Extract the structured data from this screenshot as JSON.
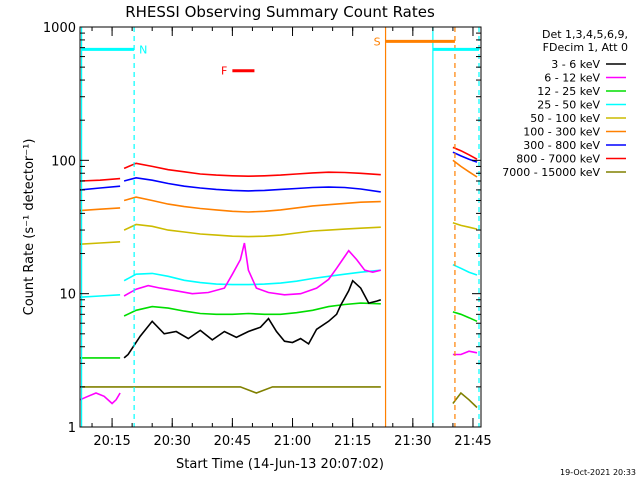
{
  "chart_data": {
    "type": "line",
    "title": "RHESSI Observing Summary Count Rates",
    "xlabel": "Start Time (14-Jun-13 20:07:02)",
    "ylabel": "Count Rate (s⁻¹ detector⁻¹)",
    "y_scale": "log",
    "ylim": [
      1,
      1000
    ],
    "y_ticks": [
      {
        "value": 1,
        "label": "1"
      },
      {
        "value": 10,
        "label": "10"
      },
      {
        "value": 100,
        "label": "100"
      },
      {
        "value": 1000,
        "label": "1000"
      }
    ],
    "x_unit": "minutes after 20:07:02",
    "xlim": [
      0,
      100
    ],
    "x_ticks": [
      {
        "value": 8,
        "label": "20:15"
      },
      {
        "value": 23,
        "label": "20:30"
      },
      {
        "value": 38,
        "label": "20:45"
      },
      {
        "value": 53,
        "label": "21:00"
      },
      {
        "value": 68,
        "label": "21:15"
      },
      {
        "value": 83,
        "label": "21:30"
      },
      {
        "value": 98,
        "label": "21:45"
      }
    ],
    "legend": {
      "placement": "right",
      "header": [
        "Det 1,3,4,5,6,9,",
        "FDecim 1, Att 0"
      ]
    },
    "series": [
      {
        "name": "3 - 6 keV",
        "color": "#000000",
        "segments": [
          [
            [
              11,
              3.3
            ],
            [
              12,
              3.5
            ],
            [
              15,
              4.8
            ],
            [
              18,
              6.2
            ],
            [
              21,
              5.0
            ],
            [
              24,
              5.2
            ],
            [
              27,
              4.6
            ],
            [
              30,
              5.3
            ],
            [
              33,
              4.5
            ],
            [
              36,
              5.2
            ],
            [
              39,
              4.7
            ],
            [
              42,
              5.2
            ],
            [
              45,
              5.6
            ],
            [
              47,
              6.5
            ],
            [
              49,
              5.2
            ],
            [
              51,
              4.4
            ],
            [
              53,
              4.3
            ],
            [
              55,
              4.6
            ],
            [
              57,
              4.2
            ],
            [
              59,
              5.4
            ],
            [
              62,
              6.2
            ],
            [
              64,
              7.0
            ],
            [
              65,
              8.2
            ],
            [
              67,
              10.5
            ],
            [
              68,
              12.5
            ],
            [
              70,
              11.0
            ],
            [
              72,
              8.5
            ],
            [
              74,
              8.8
            ],
            [
              75,
              9.0
            ]
          ]
        ]
      },
      {
        "name": "6 - 12 keV",
        "color": "#ff00ff",
        "segments": [
          [
            [
              0,
              1.6
            ],
            [
              2,
              1.7
            ],
            [
              4,
              1.8
            ],
            [
              6,
              1.7
            ],
            [
              8,
              1.5
            ],
            [
              9,
              1.6
            ],
            [
              10,
              1.8
            ]
          ],
          [
            [
              11,
              9.6
            ],
            [
              12,
              10.0
            ],
            [
              14,
              10.8
            ],
            [
              17,
              11.5
            ],
            [
              20,
              11.0
            ],
            [
              24,
              10.5
            ],
            [
              28,
              10.0
            ],
            [
              32,
              10.2
            ],
            [
              36,
              11.0
            ],
            [
              38,
              14.0
            ],
            [
              40,
              18.0
            ],
            [
              41,
              24.0
            ],
            [
              42,
              15.0
            ],
            [
              44,
              11.0
            ],
            [
              47,
              10.2
            ],
            [
              51,
              9.8
            ],
            [
              55,
              10.0
            ],
            [
              59,
              11.0
            ],
            [
              62,
              12.8
            ],
            [
              64,
              15.5
            ],
            [
              66,
              19.0
            ],
            [
              67,
              21.0
            ],
            [
              69,
              18.0
            ],
            [
              71,
              15.0
            ],
            [
              73,
              14.5
            ],
            [
              75,
              15.0
            ]
          ],
          [
            [
              93,
              3.5
            ],
            [
              95,
              3.5
            ],
            [
              97,
              3.7
            ],
            [
              99,
              3.6
            ]
          ]
        ]
      },
      {
        "name": "12 - 25 keV",
        "color": "#00dd00",
        "segments": [
          [
            [
              0,
              3.3
            ],
            [
              5,
              3.3
            ],
            [
              10,
              3.3
            ]
          ],
          [
            [
              11,
              6.8
            ],
            [
              14,
              7.5
            ],
            [
              18,
              8.0
            ],
            [
              22,
              7.8
            ],
            [
              26,
              7.4
            ],
            [
              30,
              7.1
            ],
            [
              34,
              7.0
            ],
            [
              38,
              7.0
            ],
            [
              42,
              7.1
            ],
            [
              46,
              7.0
            ],
            [
              50,
              7.0
            ],
            [
              54,
              7.2
            ],
            [
              58,
              7.5
            ],
            [
              62,
              8.0
            ],
            [
              66,
              8.3
            ],
            [
              70,
              8.5
            ],
            [
              75,
              8.4
            ]
          ],
          [
            [
              93,
              7.3
            ],
            [
              95,
              7.0
            ],
            [
              97,
              6.6
            ],
            [
              99,
              6.2
            ]
          ]
        ]
      },
      {
        "name": "25 - 50 keV",
        "color": "#00ffff",
        "segments": [
          [
            [
              0,
              9.4
            ],
            [
              5,
              9.6
            ],
            [
              10,
              9.8
            ]
          ],
          [
            [
              11,
              12.5
            ],
            [
              14,
              14.0
            ],
            [
              18,
              14.2
            ],
            [
              22,
              13.5
            ],
            [
              26,
              12.6
            ],
            [
              30,
              12.1
            ],
            [
              34,
              11.8
            ],
            [
              38,
              11.7
            ],
            [
              42,
              11.7
            ],
            [
              46,
              11.8
            ],
            [
              50,
              12.0
            ],
            [
              54,
              12.4
            ],
            [
              58,
              13.0
            ],
            [
              62,
              13.5
            ],
            [
              66,
              14.0
            ],
            [
              70,
              14.5
            ],
            [
              75,
              15.0
            ]
          ],
          [
            [
              93,
              16.5
            ],
            [
              95,
              15.5
            ],
            [
              97,
              14.5
            ],
            [
              99,
              13.8
            ]
          ]
        ]
      },
      {
        "name": "50 - 100 keV",
        "color": "#ccbb00",
        "segments": [
          [
            [
              0,
              23.5
            ],
            [
              5,
              24.0
            ],
            [
              10,
              24.5
            ]
          ],
          [
            [
              11,
              30.0
            ],
            [
              14,
              33.0
            ],
            [
              18,
              32.0
            ],
            [
              22,
              30.0
            ],
            [
              26,
              29.0
            ],
            [
              30,
              28.0
            ],
            [
              34,
              27.5
            ],
            [
              38,
              27.0
            ],
            [
              42,
              26.8
            ],
            [
              46,
              27.0
            ],
            [
              50,
              27.5
            ],
            [
              54,
              28.5
            ],
            [
              58,
              29.5
            ],
            [
              62,
              30.0
            ],
            [
              66,
              30.5
            ],
            [
              70,
              31.0
            ],
            [
              75,
              31.5
            ]
          ],
          [
            [
              93,
              34.0
            ],
            [
              95,
              32.5
            ],
            [
              97,
              31.5
            ],
            [
              99,
              30.5
            ]
          ]
        ]
      },
      {
        "name": "100 - 300 keV",
        "color": "#ff8000",
        "segments": [
          [
            [
              0,
              42.0
            ],
            [
              5,
              43.0
            ],
            [
              10,
              44.0
            ]
          ],
          [
            [
              11,
              50.0
            ],
            [
              14,
              53.0
            ],
            [
              18,
              50.0
            ],
            [
              22,
              47.0
            ],
            [
              26,
              45.0
            ],
            [
              30,
              43.5
            ],
            [
              34,
              42.5
            ],
            [
              38,
              41.5
            ],
            [
              42,
              41.0
            ],
            [
              46,
              41.5
            ],
            [
              50,
              42.5
            ],
            [
              54,
              44.0
            ],
            [
              58,
              45.5
            ],
            [
              62,
              46.5
            ],
            [
              66,
              47.5
            ],
            [
              70,
              48.5
            ],
            [
              75,
              49.0
            ]
          ],
          [
            [
              93,
              100.0
            ],
            [
              95,
              90.0
            ],
            [
              97,
              82.0
            ],
            [
              99,
              75.0
            ]
          ]
        ]
      },
      {
        "name": "300 - 800 keV",
        "color": "#0000ff",
        "segments": [
          [
            [
              0,
              60.0
            ],
            [
              5,
              62.0
            ],
            [
              10,
              64.0
            ]
          ],
          [
            [
              11,
              70.0
            ],
            [
              14,
              74.0
            ],
            [
              18,
              71.0
            ],
            [
              22,
              67.0
            ],
            [
              26,
              64.0
            ],
            [
              30,
              62.0
            ],
            [
              34,
              60.5
            ],
            [
              38,
              59.5
            ],
            [
              42,
              59.0
            ],
            [
              46,
              59.5
            ],
            [
              50,
              60.5
            ],
            [
              54,
              61.5
            ],
            [
              58,
              62.5
            ],
            [
              62,
              63.0
            ],
            [
              66,
              62.5
            ],
            [
              70,
              61.0
            ],
            [
              75,
              58.0
            ]
          ],
          [
            [
              93,
              115.0
            ],
            [
              95,
              108.0
            ],
            [
              97,
              102.0
            ],
            [
              99,
              97.0
            ]
          ]
        ]
      },
      {
        "name": "800 - 7000 keV",
        "color": "#ff0000",
        "segments": [
          [
            [
              0,
              70.0
            ],
            [
              5,
              71.0
            ],
            [
              10,
              73.0
            ]
          ],
          [
            [
              11,
              87.0
            ],
            [
              14,
              95.0
            ],
            [
              18,
              90.0
            ],
            [
              22,
              85.0
            ],
            [
              26,
              82.0
            ],
            [
              30,
              79.0
            ],
            [
              34,
              77.5
            ],
            [
              38,
              76.5
            ],
            [
              42,
              76.0
            ],
            [
              46,
              76.5
            ],
            [
              50,
              77.5
            ],
            [
              54,
              79.0
            ],
            [
              58,
              80.5
            ],
            [
              62,
              81.5
            ],
            [
              66,
              81.0
            ],
            [
              70,
              80.0
            ],
            [
              75,
              78.0
            ]
          ],
          [
            [
              93,
              125.0
            ],
            [
              95,
              118.0
            ],
            [
              97,
              110.0
            ],
            [
              99,
              102.0
            ]
          ]
        ]
      },
      {
        "name": "7000 - 15000 keV",
        "color": "#808000",
        "segments": [
          [
            [
              0,
              2.0
            ],
            [
              4,
              2.0
            ],
            [
              8,
              2.0
            ],
            [
              12,
              2.0
            ],
            [
              16,
              2.0
            ],
            [
              20,
              2.0
            ],
            [
              24,
              2.0
            ],
            [
              28,
              2.0
            ],
            [
              32,
              2.0
            ],
            [
              36,
              2.0
            ],
            [
              40,
              2.0
            ],
            [
              44,
              1.8
            ],
            [
              48,
              2.0
            ],
            [
              52,
              2.0
            ],
            [
              56,
              2.0
            ],
            [
              60,
              2.0
            ],
            [
              64,
              2.0
            ],
            [
              68,
              2.0
            ],
            [
              72,
              2.0
            ],
            [
              75,
              2.0
            ]
          ],
          [
            [
              93,
              1.5
            ],
            [
              95,
              1.8
            ],
            [
              97,
              1.6
            ],
            [
              99,
              1.4
            ]
          ]
        ]
      }
    ],
    "annotations": {
      "vertical_lines": [
        {
          "x": 0.4,
          "color": "#00ffff",
          "style": "solid"
        },
        {
          "x": 13.5,
          "color": "#00ffff",
          "style": "dashed"
        },
        {
          "x": 76.2,
          "color": "#ff8000",
          "style": "solid"
        },
        {
          "x": 88.0,
          "color": "#00ffff",
          "style": "solid"
        },
        {
          "x": 93.5,
          "color": "#ff8000",
          "style": "dashed"
        },
        {
          "x": 99.5,
          "color": "#00ffff",
          "style": "dashed"
        }
      ],
      "bars": [
        {
          "label": "N",
          "x_start": 0.4,
          "x_end": 13.5,
          "y": 680,
          "color": "#00ffff",
          "label_at": "end"
        },
        {
          "label": "F",
          "x_start": 38.0,
          "x_end": 43.5,
          "y": 470,
          "color": "#ff0000",
          "label_at": "start"
        },
        {
          "label": "S",
          "x_start": 76.2,
          "x_end": 93.5,
          "y": 780,
          "color": "#ff8000",
          "label_at": "start"
        },
        {
          "label": "",
          "x_start": 88.0,
          "x_end": 99.5,
          "y": 680,
          "color": "#00ffff",
          "label_at": "none"
        }
      ]
    },
    "footer": "19-Oct-2021 20:33"
  }
}
